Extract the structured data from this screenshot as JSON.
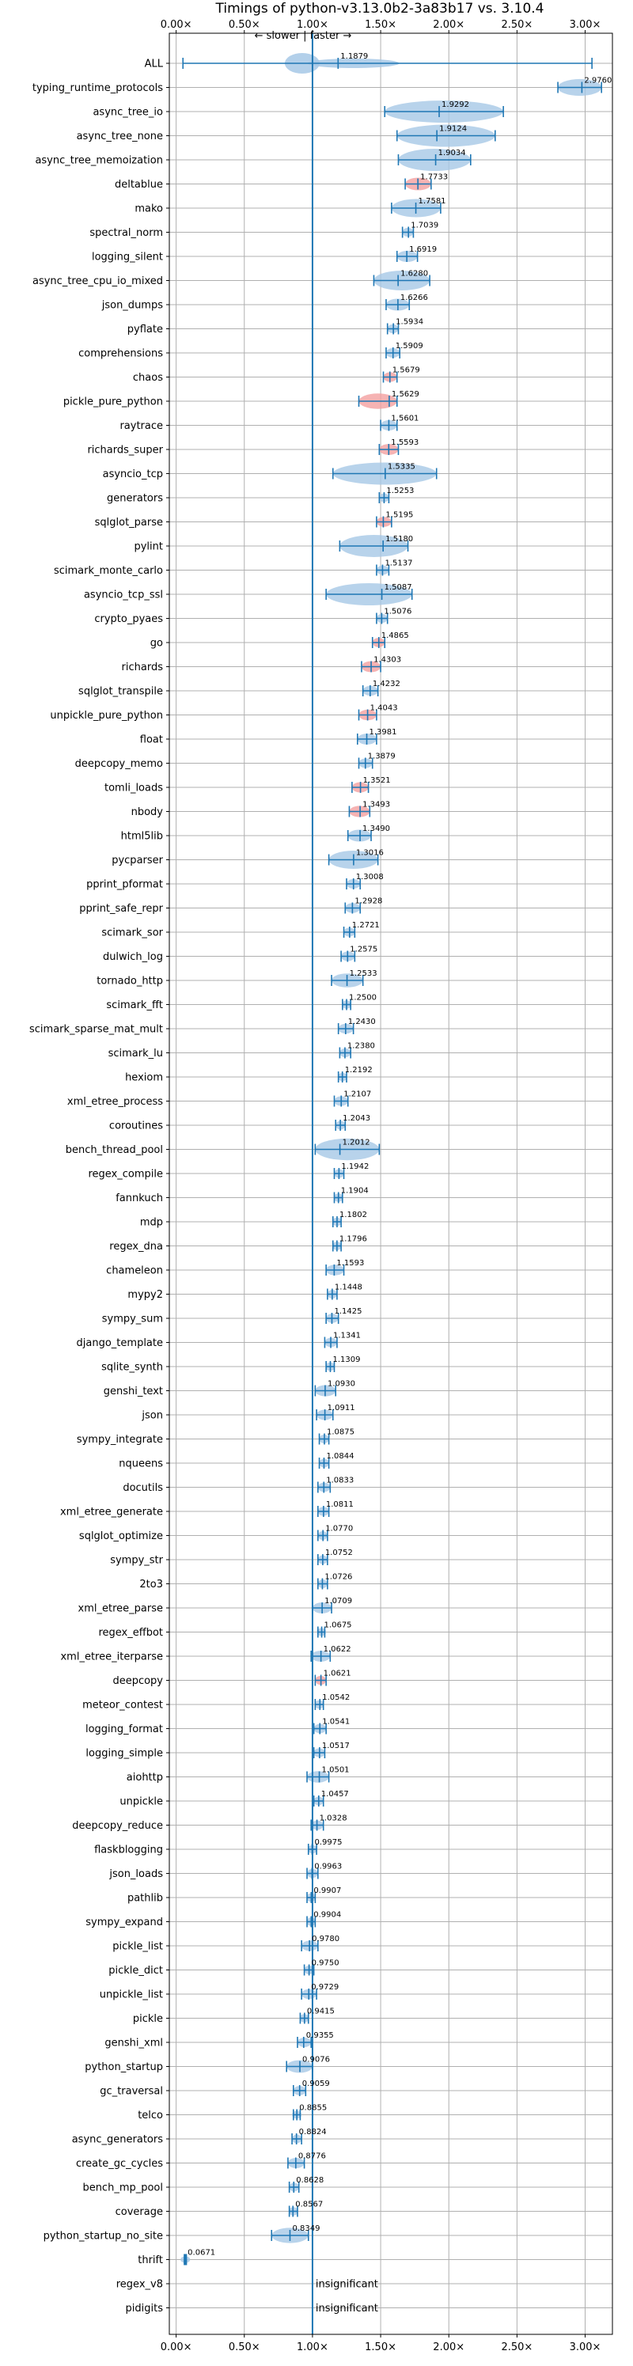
{
  "chart_data": {
    "type": "violin",
    "title": "Timings of python-v3.13.0b2-3a83b17 vs. 3.10.4",
    "annotation": "← slower | faster →",
    "xlim": [
      -0.05,
      3.2
    ],
    "xticks": [
      0.0,
      0.5,
      1.0,
      1.5,
      2.0,
      2.5,
      3.0
    ],
    "xtick_labels": [
      "0.00×",
      "0.50×",
      "1.00×",
      "1.50×",
      "2.00×",
      "2.50×",
      "3.00×"
    ],
    "reference_line": 1.0,
    "grid": true,
    "colors": {
      "violin": "#a6c8e6",
      "significant": "#1f77b4",
      "highlight": "#f4a0a0"
    },
    "benchmarks": [
      {
        "name": "ALL",
        "geomean": 1.1879,
        "label": "1.1879",
        "min": 0.05,
        "max": 3.05,
        "violin": [
          0.82,
          1.6
        ]
      },
      {
        "name": "typing_runtime_protocols",
        "geomean": 2.976,
        "label": "2.9760",
        "min": 2.8,
        "max": 3.12
      },
      {
        "name": "async_tree_io",
        "geomean": 1.9292,
        "label": "1.9292",
        "min": 1.53,
        "max": 2.4
      },
      {
        "name": "async_tree_none",
        "geomean": 1.9124,
        "label": "1.9124",
        "min": 1.62,
        "max": 2.34
      },
      {
        "name": "async_tree_memoization",
        "geomean": 1.9034,
        "label": "1.9034",
        "min": 1.63,
        "max": 2.16
      },
      {
        "name": "deltablue",
        "geomean": 1.7733,
        "label": "1.7733",
        "min": 1.68,
        "max": 1.87,
        "highlight": true
      },
      {
        "name": "mako",
        "geomean": 1.7581,
        "label": "1.7581",
        "min": 1.58,
        "max": 1.94
      },
      {
        "name": "spectral_norm",
        "geomean": 1.7039,
        "label": "1.7039",
        "min": 1.66,
        "max": 1.74
      },
      {
        "name": "logging_silent",
        "geomean": 1.6919,
        "label": "1.6919",
        "min": 1.62,
        "max": 1.77
      },
      {
        "name": "async_tree_cpu_io_mixed",
        "geomean": 1.628,
        "label": "1.6280",
        "min": 1.45,
        "max": 1.86
      },
      {
        "name": "json_dumps",
        "geomean": 1.6266,
        "label": "1.6266",
        "min": 1.54,
        "max": 1.71
      },
      {
        "name": "pyflate",
        "geomean": 1.5934,
        "label": "1.5934",
        "min": 1.55,
        "max": 1.63
      },
      {
        "name": "comprehensions",
        "geomean": 1.5909,
        "label": "1.5909",
        "min": 1.54,
        "max": 1.64
      },
      {
        "name": "chaos",
        "geomean": 1.5679,
        "label": "1.5679",
        "min": 1.52,
        "max": 1.62,
        "highlight": true
      },
      {
        "name": "pickle_pure_python",
        "geomean": 1.5629,
        "label": "1.5629",
        "min": 1.34,
        "max": 1.62,
        "highlight": true
      },
      {
        "name": "raytrace",
        "geomean": 1.5601,
        "label": "1.5601",
        "min": 1.5,
        "max": 1.62
      },
      {
        "name": "richards_super",
        "geomean": 1.5593,
        "label": "1.5593",
        "min": 1.49,
        "max": 1.63,
        "highlight": true
      },
      {
        "name": "asyncio_tcp",
        "geomean": 1.5335,
        "label": "1.5335",
        "min": 1.15,
        "max": 1.91
      },
      {
        "name": "generators",
        "geomean": 1.5253,
        "label": "1.5253",
        "min": 1.49,
        "max": 1.56
      },
      {
        "name": "sqlglot_parse",
        "geomean": 1.5195,
        "label": "1.5195",
        "min": 1.47,
        "max": 1.58,
        "highlight": true
      },
      {
        "name": "pylint",
        "geomean": 1.518,
        "label": "1.5180",
        "min": 1.2,
        "max": 1.7
      },
      {
        "name": "scimark_monte_carlo",
        "geomean": 1.5137,
        "label": "1.5137",
        "min": 1.47,
        "max": 1.56
      },
      {
        "name": "asyncio_tcp_ssl",
        "geomean": 1.5087,
        "label": "1.5087",
        "min": 1.1,
        "max": 1.73
      },
      {
        "name": "crypto_pyaes",
        "geomean": 1.5076,
        "label": "1.5076",
        "min": 1.47,
        "max": 1.55
      },
      {
        "name": "go",
        "geomean": 1.4865,
        "label": "1.4865",
        "min": 1.44,
        "max": 1.53,
        "highlight": true
      },
      {
        "name": "richards",
        "geomean": 1.4303,
        "label": "1.4303",
        "min": 1.36,
        "max": 1.5,
        "highlight": true
      },
      {
        "name": "sqlglot_transpile",
        "geomean": 1.4232,
        "label": "1.4232",
        "min": 1.37,
        "max": 1.48
      },
      {
        "name": "unpickle_pure_python",
        "geomean": 1.4043,
        "label": "1.4043",
        "min": 1.34,
        "max": 1.47,
        "highlight": true
      },
      {
        "name": "float",
        "geomean": 1.3981,
        "label": "1.3981",
        "min": 1.33,
        "max": 1.47
      },
      {
        "name": "deepcopy_memo",
        "geomean": 1.3879,
        "label": "1.3879",
        "min": 1.34,
        "max": 1.44
      },
      {
        "name": "tomli_loads",
        "geomean": 1.3521,
        "label": "1.3521",
        "min": 1.29,
        "max": 1.41,
        "highlight": true
      },
      {
        "name": "nbody",
        "geomean": 1.3493,
        "label": "1.3493",
        "min": 1.27,
        "max": 1.42,
        "highlight": true
      },
      {
        "name": "html5lib",
        "geomean": 1.349,
        "label": "1.3490",
        "min": 1.26,
        "max": 1.43
      },
      {
        "name": "pycparser",
        "geomean": 1.3016,
        "label": "1.3016",
        "min": 1.12,
        "max": 1.48
      },
      {
        "name": "pprint_pformat",
        "geomean": 1.3008,
        "label": "1.3008",
        "min": 1.25,
        "max": 1.35
      },
      {
        "name": "pprint_safe_repr",
        "geomean": 1.2928,
        "label": "1.2928",
        "min": 1.24,
        "max": 1.35
      },
      {
        "name": "scimark_sor",
        "geomean": 1.2721,
        "label": "1.2721",
        "min": 1.23,
        "max": 1.31
      },
      {
        "name": "dulwich_log",
        "geomean": 1.2575,
        "label": "1.2575",
        "min": 1.21,
        "max": 1.31
      },
      {
        "name": "tornado_http",
        "geomean": 1.2533,
        "label": "1.2533",
        "min": 1.14,
        "max": 1.37
      },
      {
        "name": "scimark_fft",
        "geomean": 1.25,
        "label": "1.2500",
        "min": 1.22,
        "max": 1.28
      },
      {
        "name": "scimark_sparse_mat_mult",
        "geomean": 1.243,
        "label": "1.2430",
        "min": 1.19,
        "max": 1.3
      },
      {
        "name": "scimark_lu",
        "geomean": 1.238,
        "label": "1.2380",
        "min": 1.2,
        "max": 1.28
      },
      {
        "name": "hexiom",
        "geomean": 1.2192,
        "label": "1.2192",
        "min": 1.19,
        "max": 1.25
      },
      {
        "name": "xml_etree_process",
        "geomean": 1.2107,
        "label": "1.2107",
        "min": 1.16,
        "max": 1.26
      },
      {
        "name": "coroutines",
        "geomean": 1.2043,
        "label": "1.2043",
        "min": 1.17,
        "max": 1.24
      },
      {
        "name": "bench_thread_pool",
        "geomean": 1.2012,
        "label": "1.2012",
        "min": 1.02,
        "max": 1.49
      },
      {
        "name": "regex_compile",
        "geomean": 1.1942,
        "label": "1.1942",
        "min": 1.16,
        "max": 1.23
      },
      {
        "name": "fannkuch",
        "geomean": 1.1904,
        "label": "1.1904",
        "min": 1.16,
        "max": 1.22
      },
      {
        "name": "mdp",
        "geomean": 1.1802,
        "label": "1.1802",
        "min": 1.15,
        "max": 1.21
      },
      {
        "name": "regex_dna",
        "geomean": 1.1796,
        "label": "1.1796",
        "min": 1.15,
        "max": 1.21
      },
      {
        "name": "chameleon",
        "geomean": 1.1593,
        "label": "1.1593",
        "min": 1.1,
        "max": 1.23
      },
      {
        "name": "mypy2",
        "geomean": 1.1448,
        "label": "1.1448",
        "min": 1.11,
        "max": 1.18
      },
      {
        "name": "sympy_sum",
        "geomean": 1.1425,
        "label": "1.1425",
        "min": 1.1,
        "max": 1.19
      },
      {
        "name": "django_template",
        "geomean": 1.1341,
        "label": "1.1341",
        "min": 1.09,
        "max": 1.18
      },
      {
        "name": "sqlite_synth",
        "geomean": 1.1309,
        "label": "1.1309",
        "min": 1.1,
        "max": 1.16
      },
      {
        "name": "genshi_text",
        "geomean": 1.093,
        "label": "1.0930",
        "min": 1.02,
        "max": 1.17
      },
      {
        "name": "json",
        "geomean": 1.0911,
        "label": "1.0911",
        "min": 1.03,
        "max": 1.15
      },
      {
        "name": "sympy_integrate",
        "geomean": 1.0875,
        "label": "1.0875",
        "min": 1.05,
        "max": 1.12
      },
      {
        "name": "nqueens",
        "geomean": 1.0844,
        "label": "1.0844",
        "min": 1.05,
        "max": 1.12
      },
      {
        "name": "docutils",
        "geomean": 1.0833,
        "label": "1.0833",
        "min": 1.04,
        "max": 1.13
      },
      {
        "name": "xml_etree_generate",
        "geomean": 1.0811,
        "label": "1.0811",
        "min": 1.04,
        "max": 1.12
      },
      {
        "name": "sqlglot_optimize",
        "geomean": 1.077,
        "label": "1.0770",
        "min": 1.04,
        "max": 1.11
      },
      {
        "name": "sympy_str",
        "geomean": 1.0752,
        "label": "1.0752",
        "min": 1.04,
        "max": 1.11
      },
      {
        "name": "2to3",
        "geomean": 1.0726,
        "label": "1.0726",
        "min": 1.04,
        "max": 1.11
      },
      {
        "name": "xml_etree_parse",
        "geomean": 1.0709,
        "label": "1.0709",
        "min": 1.0,
        "max": 1.14
      },
      {
        "name": "regex_effbot",
        "geomean": 1.0675,
        "label": "1.0675",
        "min": 1.04,
        "max": 1.09
      },
      {
        "name": "xml_etree_iterparse",
        "geomean": 1.0622,
        "label": "1.0622",
        "min": 0.99,
        "max": 1.13
      },
      {
        "name": "deepcopy",
        "geomean": 1.0621,
        "label": "1.0621",
        "min": 1.02,
        "max": 1.1,
        "highlight": true
      },
      {
        "name": "meteor_contest",
        "geomean": 1.0542,
        "label": "1.0542",
        "min": 1.02,
        "max": 1.08
      },
      {
        "name": "logging_format",
        "geomean": 1.0541,
        "label": "1.0541",
        "min": 1.01,
        "max": 1.1
      },
      {
        "name": "logging_simple",
        "geomean": 1.0517,
        "label": "1.0517",
        "min": 1.01,
        "max": 1.09
      },
      {
        "name": "aiohttp",
        "geomean": 1.0501,
        "label": "1.0501",
        "min": 0.96,
        "max": 1.12
      },
      {
        "name": "unpickle",
        "geomean": 1.0457,
        "label": "1.0457",
        "min": 1.01,
        "max": 1.08
      },
      {
        "name": "deepcopy_reduce",
        "geomean": 1.0328,
        "label": "1.0328",
        "min": 0.99,
        "max": 1.08
      },
      {
        "name": "flaskblogging",
        "geomean": 0.9975,
        "label": "0.9975",
        "min": 0.97,
        "max": 1.03
      },
      {
        "name": "json_loads",
        "geomean": 0.9963,
        "label": "0.9963",
        "min": 0.96,
        "max": 1.04
      },
      {
        "name": "pathlib",
        "geomean": 0.9907,
        "label": "0.9907",
        "min": 0.96,
        "max": 1.02
      },
      {
        "name": "sympy_expand",
        "geomean": 0.9904,
        "label": "0.9904",
        "min": 0.96,
        "max": 1.02
      },
      {
        "name": "pickle_list",
        "geomean": 0.978,
        "label": "0.9780",
        "min": 0.92,
        "max": 1.04
      },
      {
        "name": "pickle_dict",
        "geomean": 0.975,
        "label": "0.9750",
        "min": 0.94,
        "max": 1.01
      },
      {
        "name": "unpickle_list",
        "geomean": 0.9729,
        "label": "0.9729",
        "min": 0.92,
        "max": 1.03
      },
      {
        "name": "pickle",
        "geomean": 0.9415,
        "label": "0.9415",
        "min": 0.91,
        "max": 0.97
      },
      {
        "name": "genshi_xml",
        "geomean": 0.9355,
        "label": "0.9355",
        "min": 0.89,
        "max": 0.99
      },
      {
        "name": "python_startup",
        "geomean": 0.9076,
        "label": "0.9076",
        "min": 0.81,
        "max": 1.0
      },
      {
        "name": "gc_traversal",
        "geomean": 0.9059,
        "label": "0.9059",
        "min": 0.86,
        "max": 0.95
      },
      {
        "name": "telco",
        "geomean": 0.8855,
        "label": "0.8855",
        "min": 0.86,
        "max": 0.91
      },
      {
        "name": "async_generators",
        "geomean": 0.8824,
        "label": "0.8824",
        "min": 0.85,
        "max": 0.92
      },
      {
        "name": "create_gc_cycles",
        "geomean": 0.8776,
        "label": "0.8776",
        "min": 0.82,
        "max": 0.94
      },
      {
        "name": "bench_mp_pool",
        "geomean": 0.8628,
        "label": "0.8628",
        "min": 0.83,
        "max": 0.9
      },
      {
        "name": "coverage",
        "geomean": 0.8567,
        "label": "0.8567",
        "min": 0.83,
        "max": 0.89
      },
      {
        "name": "python_startup_no_site",
        "geomean": 0.8349,
        "label": "0.8349",
        "min": 0.7,
        "max": 0.97
      },
      {
        "name": "thrift",
        "geomean": 0.0671,
        "label": "0.0671",
        "min": 0.06,
        "max": 0.075
      },
      {
        "name": "regex_v8",
        "insignificant": true,
        "note": "insignificant"
      },
      {
        "name": "pidigits",
        "insignificant": true,
        "note": "insignificant"
      }
    ]
  }
}
